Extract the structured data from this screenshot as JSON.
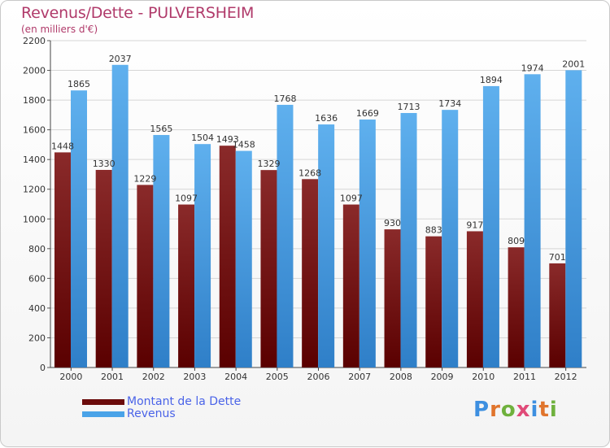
{
  "header": {
    "title": "Revenus/Dette - PULVERSHEIM",
    "subtitle": "(en milliers d'€)"
  },
  "brand": {
    "letters": [
      "P",
      "r",
      "o",
      "x",
      "i",
      "t",
      "i"
    ],
    "colors": [
      "#3d8fe0",
      "#e0742c",
      "#6fb13d",
      "#e04a78",
      "#3d8fe0",
      "#e0742c",
      "#6fb13d"
    ]
  },
  "legend": [
    {
      "label": "Montant de la Dette",
      "color": "#6b0b0b"
    },
    {
      "label": "Revenus",
      "color": "#4aa3e8"
    }
  ],
  "chart_data": {
    "type": "bar",
    "categories": [
      "2000",
      "2001",
      "2002",
      "2003",
      "2004",
      "2005",
      "2006",
      "2007",
      "2008",
      "2009",
      "2010",
      "2011",
      "2012"
    ],
    "series": [
      {
        "name": "Montant de la Dette",
        "color": "#6b0b0b",
        "values": [
          1448,
          1330,
          1229,
          1097,
          1493,
          1329,
          1268,
          1097,
          930,
          883,
          917,
          809,
          701
        ],
        "labels": [
          "1448",
          "1330",
          "1229",
          "1097",
          "1493",
          "1329",
          "1268",
          "1097",
          "930",
          "883",
          "917",
          "809",
          "701"
        ]
      },
      {
        "name": "Revenus",
        "color": "#4aa3e8",
        "values": [
          1865,
          2037,
          1565,
          1504,
          1458,
          1768,
          1636,
          1669,
          1713,
          1734,
          1894,
          1974,
          2001
        ],
        "labels": [
          "1865",
          "2037",
          "1565",
          "1504",
          "1458",
          "1768",
          "1636",
          "1669",
          "1713",
          "1734",
          "1894",
          "1974",
          "2001"
        ]
      }
    ],
    "yticks": [
      0,
      200,
      400,
      600,
      800,
      1000,
      1200,
      1400,
      1600,
      1800,
      2000,
      2200
    ],
    "ylim": [
      0,
      2200
    ],
    "grid": true
  }
}
